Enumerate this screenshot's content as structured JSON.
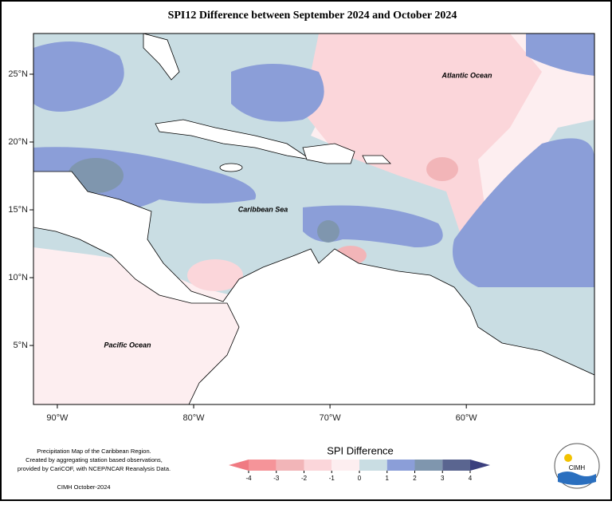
{
  "map": {
    "title": "SPI12 Difference between September 2024 and October 2024",
    "lon_range": [
      -91.75,
      -50.6
    ],
    "lat_range": [
      0.65,
      28
    ],
    "xticks": [
      {
        "value": -90,
        "label": "90°W"
      },
      {
        "value": -80,
        "label": "80°W"
      },
      {
        "value": -70,
        "label": "70°W"
      },
      {
        "value": -60,
        "label": "60°W"
      }
    ],
    "yticks": [
      {
        "value": 25,
        "label": "25°N"
      },
      {
        "value": 20,
        "label": "20°N"
      },
      {
        "value": 15,
        "label": "15°N"
      },
      {
        "value": 10,
        "label": "10°N"
      },
      {
        "value": 5,
        "label": "5°N"
      }
    ],
    "labels": [
      "Atlantic Ocean",
      "Caribbean Sea",
      "Pacific Ocean"
    ],
    "legend": {
      "title": "SPI Difference",
      "ticks": [
        -4,
        -3,
        -2,
        -1,
        0,
        1,
        2,
        3,
        4
      ],
      "colors": [
        "#f07a82",
        "#f59499",
        "#f2b5b8",
        "#fbd6da",
        "#fdeef0",
        "#c9dde3",
        "#8b9ed8",
        "#7f96ae",
        "#5a6590",
        "#3b3f7e"
      ]
    },
    "notes": [
      "Precipitation Map of the Caribbean Region.",
      "Created by aggregating station based observations,",
      "provided by CariCOF, with NCEP/NCAR Reanalysis Data.",
      "CIMH October-2024"
    ],
    "logo": "CIMH"
  }
}
